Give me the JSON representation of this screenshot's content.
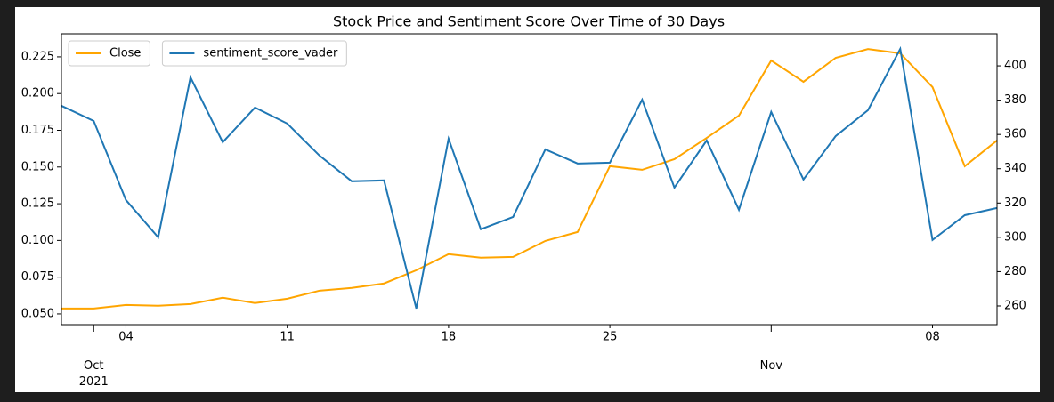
{
  "chart_data": {
    "type": "line",
    "title": "Stock Price and Sentiment Score Over Time of 30 Days",
    "x": [
      "2021-09-30",
      "2021-10-01",
      "2021-10-04",
      "2021-10-05",
      "2021-10-06",
      "2021-10-07",
      "2021-10-08",
      "2021-10-11",
      "2021-10-12",
      "2021-10-13",
      "2021-10-14",
      "2021-10-15",
      "2021-10-18",
      "2021-10-19",
      "2021-10-20",
      "2021-10-21",
      "2021-10-22",
      "2021-10-25",
      "2021-10-26",
      "2021-10-27",
      "2021-10-28",
      "2021-10-29",
      "2021-11-01",
      "2021-11-02",
      "2021-11-03",
      "2021-11-04",
      "2021-11-05",
      "2021-11-08",
      "2021-11-09",
      "2021-11-10"
    ],
    "xticks": [
      {
        "value": "2021-10-04",
        "label": "04"
      },
      {
        "value": "2021-10-11",
        "label": "11"
      },
      {
        "value": "2021-10-18",
        "label": "18"
      },
      {
        "value": "2021-10-25",
        "label": "25"
      },
      {
        "value": "2021-11-08",
        "label": "08"
      }
    ],
    "xticks_major": [
      {
        "value": "2021-10-01",
        "label": "Oct\n2021"
      },
      {
        "value": "2021-11-01",
        "label": "Nov"
      }
    ],
    "series": [
      {
        "name": "Close",
        "color": "#ffa500",
        "axis": "y2",
        "values": [
          258.5,
          258.5,
          260.6,
          260.1,
          261.1,
          264.8,
          261.7,
          264.2,
          268.9,
          270.5,
          273.1,
          280.8,
          290.2,
          288.1,
          288.6,
          297.9,
          303.1,
          341.5,
          339.4,
          345.6,
          358.0,
          371.0,
          403.1,
          390.7,
          404.7,
          409.8,
          407.3,
          387.6,
          341.5,
          356.5
        ]
      },
      {
        "name": "sentiment_score_vader",
        "color": "#1f77b4",
        "values": [
          0.1917,
          0.1814,
          0.1275,
          0.1021,
          0.2111,
          0.1669,
          0.1905,
          0.1796,
          0.1578,
          0.1403,
          0.1409,
          0.0537,
          0.1693,
          0.1076,
          0.116,
          0.162,
          0.1524,
          0.153,
          0.1959,
          0.136,
          0.1681,
          0.1209,
          0.1875,
          0.1415,
          0.1711,
          0.1887,
          0.2304,
          0.1003,
          0.1172,
          0.1221
        ]
      }
    ],
    "ylim": [
      0.0427,
      0.2407
    ],
    "yticks": [
      {
        "value": 0.05,
        "label": "0.050"
      },
      {
        "value": 0.075,
        "label": "0.075"
      },
      {
        "value": 0.1,
        "label": "0.100"
      },
      {
        "value": 0.125,
        "label": "0.125"
      },
      {
        "value": 0.15,
        "label": "0.150"
      },
      {
        "value": 0.175,
        "label": "0.175"
      },
      {
        "value": 0.2,
        "label": "0.200"
      },
      {
        "value": 0.225,
        "label": "0.225"
      }
    ],
    "y2lim": [
      249.1,
      418.7
    ],
    "y2ticks": [
      260,
      280,
      300,
      320,
      340,
      360,
      380,
      400
    ],
    "legend": "upper left"
  }
}
